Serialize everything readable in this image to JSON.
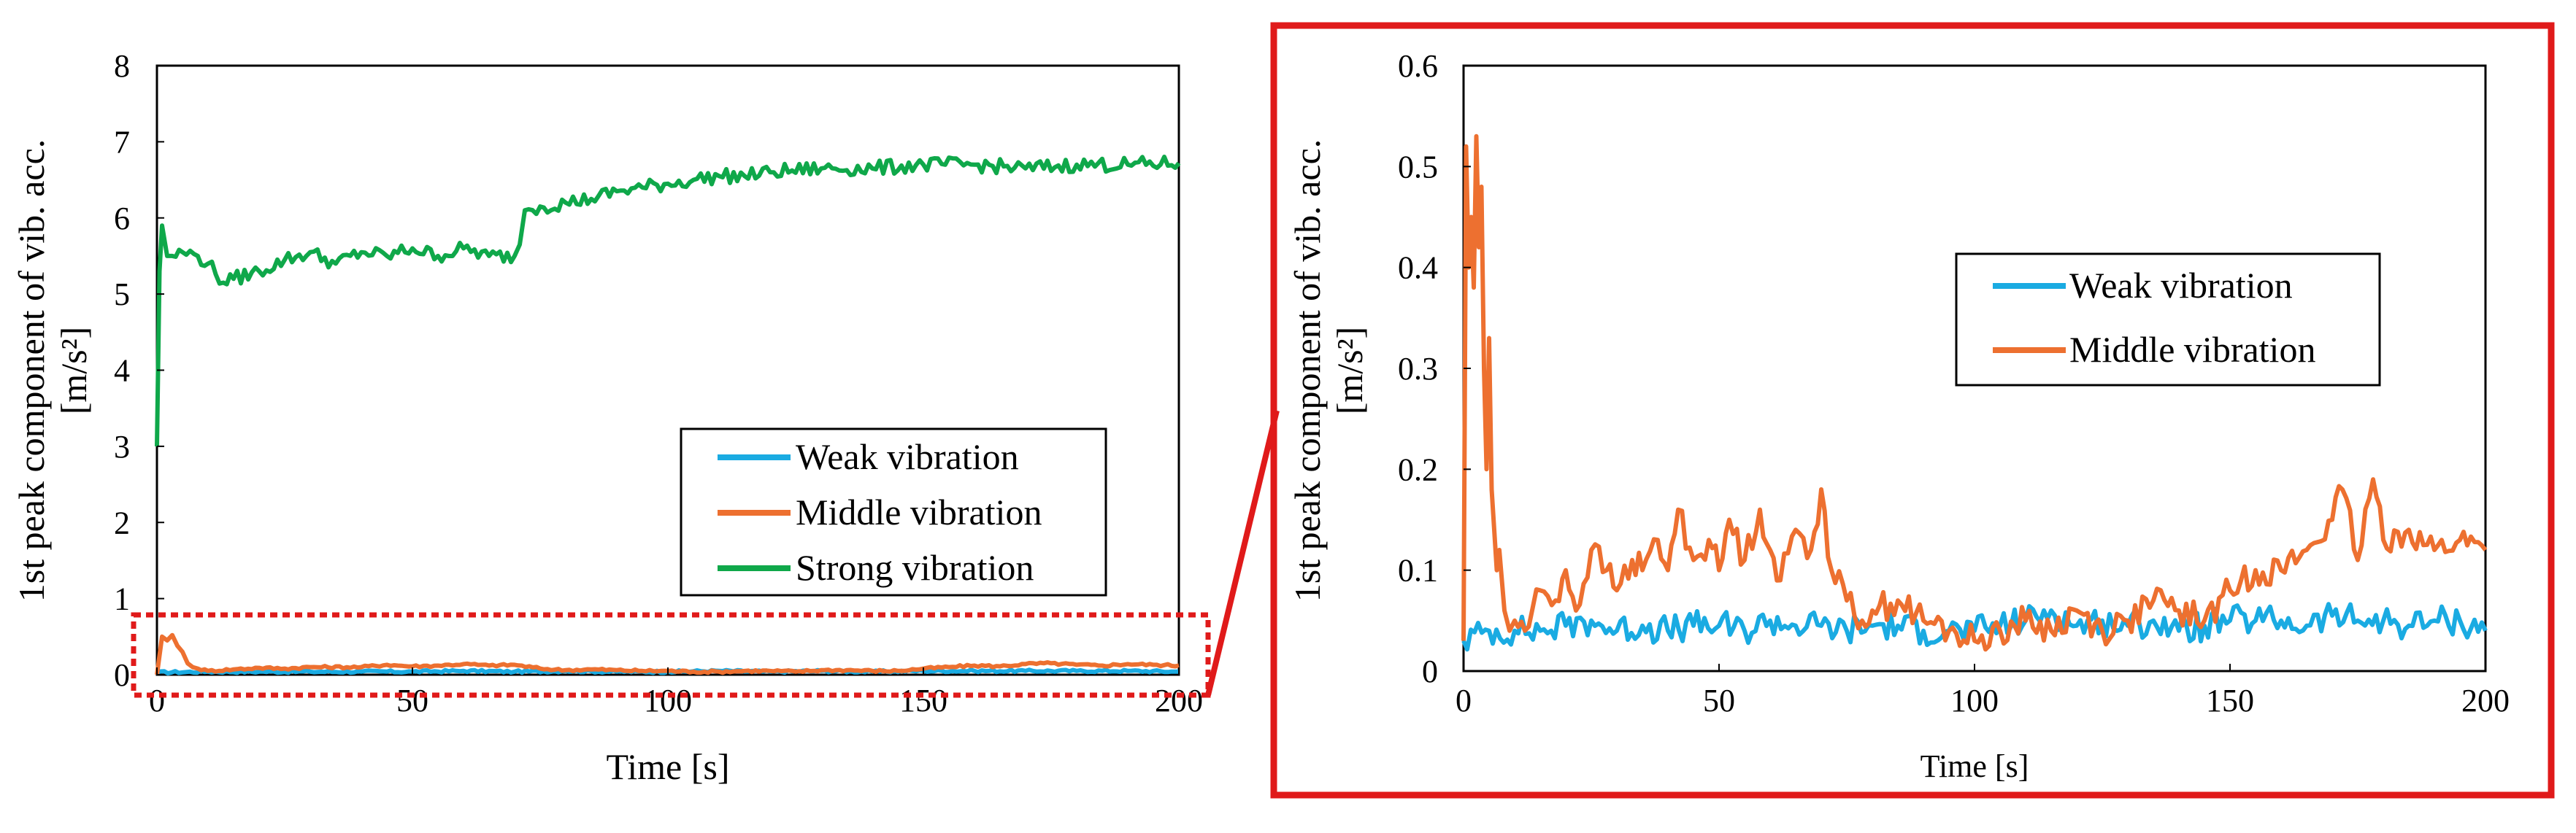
{
  "chart_data": [
    {
      "type": "line",
      "title": "",
      "xlabel": "Time [s]",
      "ylabel_line1": "1st peak component of  vib. acc.",
      "ylabel_line2": "[m/s²]",
      "xlim": [
        0,
        200
      ],
      "ylim": [
        0,
        8
      ],
      "x_ticks": [
        "0",
        "50",
        "100",
        "150",
        "200"
      ],
      "y_ticks": [
        "0",
        "1",
        "2",
        "3",
        "4",
        "5",
        "6",
        "7",
        "8"
      ],
      "legend_position": "lower-right",
      "series": [
        {
          "name": "Weak vibration",
          "color": "#1aabe2",
          "x": [
            0,
            10,
            20,
            30,
            40,
            50,
            60,
            70,
            80,
            90,
            100,
            110,
            120,
            130,
            140,
            150,
            160,
            170,
            180,
            190,
            200
          ],
          "y": [
            0.03,
            0.04,
            0.04,
            0.04,
            0.04,
            0.04,
            0.05,
            0.04,
            0.05,
            0.04,
            0.04,
            0.05,
            0.04,
            0.05,
            0.04,
            0.05,
            0.05,
            0.05,
            0.05,
            0.05,
            0.04
          ]
        },
        {
          "name": "Middle vibration",
          "color": "#ed7030",
          "x": [
            0,
            1,
            2,
            3,
            4,
            5,
            6,
            7,
            8,
            10,
            15,
            20,
            25,
            30,
            40,
            45,
            50,
            55,
            60,
            65,
            70,
            75,
            80,
            85,
            90,
            95,
            100,
            105,
            110,
            115,
            120,
            125,
            130,
            135,
            140,
            145,
            150,
            155,
            160,
            165,
            170,
            175,
            180,
            185,
            190,
            195,
            200
          ],
          "y": [
            0.0,
            0.5,
            0.45,
            0.52,
            0.38,
            0.3,
            0.15,
            0.1,
            0.08,
            0.05,
            0.07,
            0.09,
            0.08,
            0.1,
            0.1,
            0.13,
            0.11,
            0.12,
            0.14,
            0.12,
            0.13,
            0.08,
            0.06,
            0.07,
            0.06,
            0.05,
            0.05,
            0.04,
            0.04,
            0.05,
            0.05,
            0.04,
            0.06,
            0.06,
            0.05,
            0.05,
            0.08,
            0.1,
            0.12,
            0.11,
            0.14,
            0.15,
            0.13,
            0.12,
            0.14,
            0.13,
            0.12
          ]
        },
        {
          "name": "Strong vibration",
          "color": "#0fa84a",
          "x": [
            0,
            0.5,
            1,
            2,
            3,
            5,
            8,
            10,
            13,
            15,
            20,
            25,
            30,
            35,
            40,
            45,
            50,
            55,
            60,
            65,
            70,
            71,
            72,
            75,
            80,
            85,
            90,
            95,
            100,
            105,
            110,
            115,
            120,
            130,
            140,
            150,
            160,
            170,
            180,
            190,
            200
          ],
          "y": [
            3.0,
            5.3,
            5.9,
            5.5,
            5.5,
            5.55,
            5.5,
            5.4,
            5.15,
            5.2,
            5.3,
            5.45,
            5.55,
            5.4,
            5.55,
            5.5,
            5.6,
            5.5,
            5.6,
            5.5,
            5.5,
            5.65,
            6.1,
            6.15,
            6.2,
            6.25,
            6.35,
            6.4,
            6.45,
            6.5,
            6.55,
            6.55,
            6.6,
            6.65,
            6.65,
            6.7,
            6.7,
            6.65,
            6.7,
            6.7,
            6.72
          ]
        }
      ]
    },
    {
      "type": "line",
      "title": "",
      "xlabel": "Time [s]",
      "ylabel_line1": "1st peak component of  vib. acc.",
      "ylabel_line2": "[m/s²]",
      "xlim": [
        0,
        200
      ],
      "ylim": [
        0,
        0.6
      ],
      "x_ticks": [
        "0",
        "50",
        "100",
        "150",
        "200"
      ],
      "y_ticks": [
        "0",
        "0.1",
        "0.2",
        "0.3",
        "0.4",
        "0.5",
        "0.6"
      ],
      "legend_position": "upper-right",
      "series": [
        {
          "name": "Weak vibration",
          "color": "#1aabe2",
          "x": [
            0,
            5,
            10,
            15,
            20,
            25,
            30,
            35,
            40,
            45,
            50,
            55,
            60,
            65,
            70,
            75,
            80,
            85,
            90,
            95,
            100,
            105,
            110,
            115,
            120,
            125,
            130,
            135,
            140,
            145,
            150,
            155,
            160,
            165,
            170,
            175,
            180,
            185,
            190,
            195,
            200
          ],
          "y": [
            0.03,
            0.04,
            0.04,
            0.04,
            0.045,
            0.05,
            0.04,
            0.045,
            0.04,
            0.045,
            0.045,
            0.04,
            0.05,
            0.045,
            0.045,
            0.04,
            0.045,
            0.045,
            0.04,
            0.04,
            0.04,
            0.045,
            0.05,
            0.06,
            0.045,
            0.05,
            0.045,
            0.05,
            0.04,
            0.045,
            0.05,
            0.05,
            0.05,
            0.045,
            0.055,
            0.05,
            0.05,
            0.045,
            0.05,
            0.05,
            0.04
          ]
        },
        {
          "name": "Middle vibration",
          "color": "#ed7030",
          "x": [
            0,
            0.5,
            1,
            1.5,
            2,
            2.5,
            3,
            3.5,
            4,
            4.5,
            5,
            5.5,
            6,
            6.5,
            7,
            8,
            9,
            10,
            12,
            15,
            18,
            20,
            22,
            25,
            28,
            30,
            33,
            35,
            38,
            40,
            42,
            45,
            48,
            50,
            52,
            55,
            58,
            60,
            62,
            65,
            68,
            70,
            72,
            75,
            78,
            80,
            85,
            90,
            95,
            100,
            105,
            110,
            115,
            120,
            125,
            130,
            135,
            140,
            145,
            150,
            155,
            160,
            165,
            170,
            172,
            175,
            178,
            180,
            185,
            190,
            195,
            200
          ],
          "y": [
            0.03,
            0.52,
            0.4,
            0.45,
            0.38,
            0.53,
            0.42,
            0.48,
            0.3,
            0.2,
            0.33,
            0.18,
            0.14,
            0.1,
            0.12,
            0.06,
            0.04,
            0.05,
            0.04,
            0.08,
            0.07,
            0.1,
            0.06,
            0.12,
            0.1,
            0.08,
            0.11,
            0.1,
            0.13,
            0.1,
            0.16,
            0.11,
            0.13,
            0.1,
            0.15,
            0.11,
            0.16,
            0.12,
            0.09,
            0.14,
            0.12,
            0.18,
            0.1,
            0.07,
            0.05,
            0.06,
            0.07,
            0.05,
            0.04,
            0.03,
            0.04,
            0.05,
            0.04,
            0.06,
            0.04,
            0.05,
            0.07,
            0.06,
            0.05,
            0.08,
            0.1,
            0.1,
            0.12,
            0.15,
            0.18,
            0.11,
            0.19,
            0.13,
            0.14,
            0.12,
            0.13,
            0.12
          ]
        }
      ]
    }
  ],
  "legend": {
    "weak": "Weak vibration",
    "middle": "Middle vibration",
    "strong": "Strong vibration"
  },
  "highlight": {
    "zoom_box_color": "#e01a1a",
    "description": ""
  }
}
